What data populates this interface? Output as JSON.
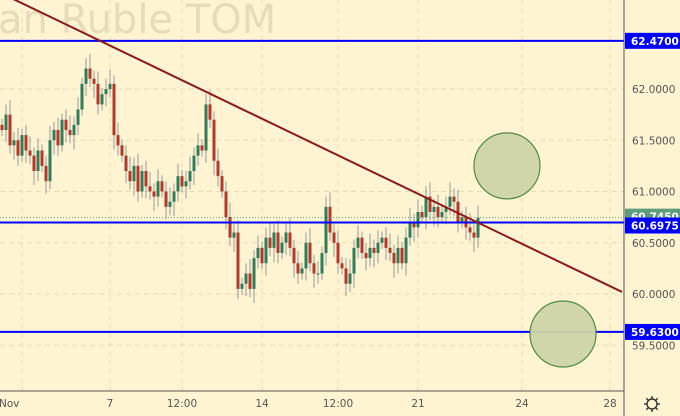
{
  "title_watermark": "an Ruble TOM",
  "chart_data": {
    "type": "candlestick",
    "ylim": [
      59.2,
      62.85
    ],
    "y_ticks": [
      "62.0000",
      "61.5000",
      "61.0000",
      "60.5000",
      "60.0000",
      "59.5000"
    ],
    "x_ticks": [
      {
        "label": "Nov",
        "bar": 2
      },
      {
        "label": "7",
        "bar": 27
      },
      {
        "label": "12:00",
        "bar": 45
      },
      {
        "label": "14",
        "bar": 65
      },
      {
        "label": "12:00",
        "bar": 84
      },
      {
        "label": "21",
        "bar": 104
      },
      {
        "label": "24",
        "bar": 130
      },
      {
        "label": "28",
        "bar": 152
      }
    ],
    "grid": true,
    "closes": [
      61.6,
      61.75,
      61.45,
      61.5,
      61.35,
      61.55,
      61.4,
      61.35,
      61.2,
      61.4,
      61.25,
      61.1,
      61.5,
      61.6,
      61.45,
      61.7,
      61.6,
      61.55,
      61.65,
      61.8,
      62.05,
      62.2,
      62.1,
      62.05,
      61.85,
      61.95,
      62.0,
      62.05,
      61.55,
      61.45,
      61.35,
      61.2,
      61.1,
      61.25,
      61.0,
      61.2,
      61.05,
      61.0,
      60.95,
      61.1,
      61.0,
      60.85,
      60.9,
      61.0,
      61.15,
      61.05,
      61.1,
      61.2,
      61.35,
      61.45,
      61.4,
      61.85,
      61.7,
      61.3,
      61.15,
      61.0,
      60.75,
      60.55,
      60.6,
      60.05,
      60.1,
      60.2,
      60.05,
      60.35,
      60.45,
      60.3,
      60.55,
      60.45,
      60.6,
      60.4,
      60.5,
      60.6,
      60.45,
      60.3,
      60.2,
      60.25,
      60.5,
      60.3,
      60.2,
      60.2,
      60.4,
      60.85,
      60.6,
      60.5,
      60.3,
      60.25,
      60.1,
      60.2,
      60.45,
      60.55,
      60.4,
      60.35,
      60.45,
      60.4,
      60.5,
      60.55,
      60.45,
      60.4,
      60.3,
      60.45,
      60.3,
      60.55,
      60.7,
      60.65,
      60.8,
      60.75,
      60.95,
      60.8,
      60.85,
      60.75,
      60.8,
      60.85,
      60.95,
      60.9,
      60.7,
      60.75,
      60.65,
      60.6,
      60.55,
      60.745
    ],
    "horizontal_lines": [
      {
        "price": 62.47,
        "label": "62.4700",
        "color": "#0000ff"
      },
      {
        "price": 60.6975,
        "label": "60.6975",
        "color": "#0000ff"
      },
      {
        "price": 59.63,
        "label": "59.6300",
        "color": "#0000ff"
      }
    ],
    "last_price": {
      "price": 60.745,
      "label": "60.7450",
      "color": "#5e9c7e"
    },
    "trendline": {
      "points": [
        {
          "bar": 0,
          "price": 62.94
        },
        {
          "bar": 155,
          "price": 60.02
        }
      ],
      "color": "#8b1a1a"
    },
    "circles": [
      {
        "bar": 126,
        "price": 61.25,
        "fill": "#cfd4a8",
        "stroke": "#4f8a45"
      },
      {
        "bar": 140,
        "price": 59.61,
        "fill": "#cfd4a8",
        "stroke": "#4f8a45"
      }
    ],
    "colors": {
      "up": "#2f7d5b",
      "down": "#b2392b",
      "wick": "#999999",
      "background": "#fff4d2"
    }
  },
  "settings_icon": "gear-icon"
}
